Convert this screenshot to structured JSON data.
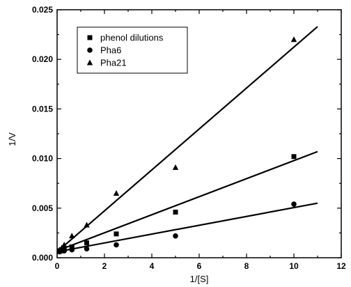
{
  "chart_data": {
    "type": "scatter",
    "xlabel": "1/[S]",
    "ylabel": "1/V",
    "xlim": [
      0,
      12
    ],
    "ylim": [
      0,
      0.025
    ],
    "x_ticks": [
      "0",
      "2",
      "4",
      "6",
      "8",
      "10",
      "12"
    ],
    "y_ticks": [
      "0.000",
      "0.005",
      "0.010",
      "0.015",
      "0.020",
      "0.025"
    ],
    "legend_position": "top-left",
    "series": [
      {
        "name": "phenol dilutions",
        "marker": "square",
        "x": [
          0.1,
          0.2,
          0.3,
          0.625,
          1.25,
          2.5,
          5,
          10
        ],
        "y": [
          0.0007,
          0.0008,
          0.0009,
          0.0011,
          0.0015,
          0.0024,
          0.0046,
          0.0102
        ],
        "fit": {
          "x": [
            0,
            11
          ],
          "y": [
            0.0007,
            0.0107
          ]
        }
      },
      {
        "name": "Pha6",
        "marker": "circle",
        "x": [
          0.1,
          0.2,
          0.3,
          0.625,
          1.25,
          2.5,
          5,
          10
        ],
        "y": [
          0.0006,
          0.0007,
          0.0007,
          0.0008,
          0.0009,
          0.0013,
          0.0022,
          0.0054
        ],
        "fit": {
          "x": [
            0,
            11
          ],
          "y": [
            0.0006,
            0.0055
          ]
        }
      },
      {
        "name": "Pha21",
        "marker": "triangle",
        "x": [
          0.1,
          0.2,
          0.3,
          0.625,
          1.25,
          2.5,
          5,
          10
        ],
        "y": [
          0.0008,
          0.001,
          0.0013,
          0.0022,
          0.0033,
          0.0065,
          0.0091,
          0.022
        ],
        "fit": {
          "x": [
            0,
            11
          ],
          "y": [
            0.0006,
            0.0233
          ]
        }
      }
    ]
  }
}
